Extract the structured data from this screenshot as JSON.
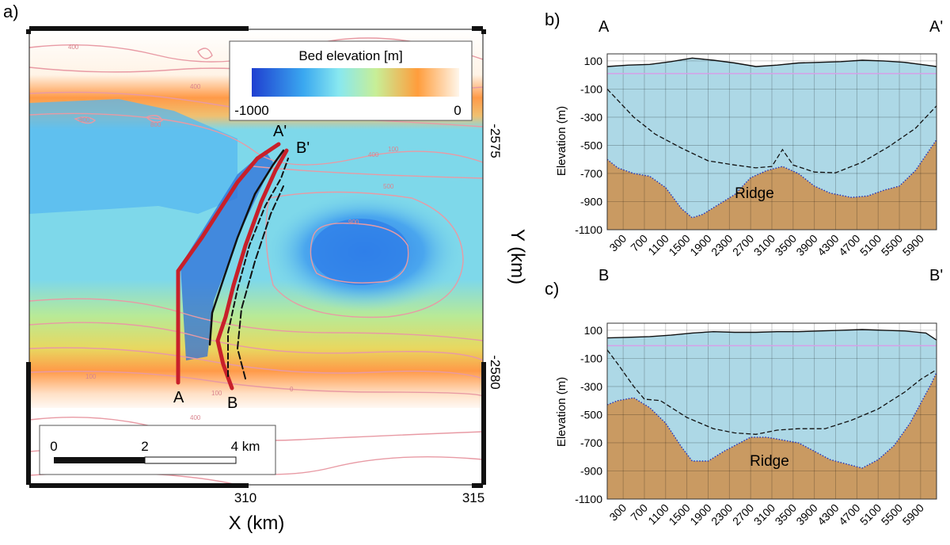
{
  "colors": {
    "water": "#add8e6",
    "bed": "#c99a62",
    "contour": "#e89aa4",
    "ice_line": "#111111",
    "profile_line": "#c8202a",
    "lake_line": "#d6a0e8"
  },
  "panel_a": {
    "label": "a)",
    "xlabel": "X (km)",
    "ylabel": "Y (km)",
    "x_ticks": [
      "310",
      "315"
    ],
    "y_ticks": [
      "-2575",
      "-2580"
    ],
    "colorbar": {
      "title": "Bed elevation [m]",
      "min_label": "-1000",
      "max_label": "0"
    },
    "scalebar": {
      "labels": [
        "0",
        "2",
        "4 km"
      ]
    },
    "profile_labels": [
      "A",
      "A'",
      "B",
      "B'"
    ],
    "contour_labels": [
      "400",
      "800",
      "400",
      "800",
      "400",
      "500",
      "900",
      "100",
      "100",
      "0",
      "100",
      "400"
    ]
  },
  "chart_data": [
    {
      "type": "area",
      "panel": "b)",
      "start_label": "A",
      "end_label": "A'",
      "xlabel": "",
      "ylabel": "Elevation (m)",
      "xlim": [
        0,
        6200
      ],
      "ylim": [
        -1100,
        150
      ],
      "x_ticks": [
        300,
        700,
        1100,
        1500,
        1900,
        2300,
        2700,
        3100,
        3500,
        3900,
        4300,
        4700,
        5100,
        5500,
        5900
      ],
      "y_ticks": [
        100,
        -100,
        -300,
        -500,
        -700,
        -900,
        -1100
      ],
      "annotation": "Ridge",
      "series": [
        {
          "name": "surface",
          "x": [
            0,
            400,
            800,
            1200,
            1600,
            2000,
            2400,
            2800,
            3200,
            3600,
            4000,
            4400,
            4800,
            5200,
            5600,
            6000,
            6200
          ],
          "y": [
            60,
            70,
            75,
            95,
            120,
            105,
            85,
            60,
            70,
            85,
            90,
            95,
            105,
            100,
            90,
            70,
            60
          ]
        },
        {
          "name": "lake_level",
          "x": [
            0,
            6200
          ],
          "y": [
            10,
            10
          ]
        },
        {
          "name": "ice_bottom",
          "x": [
            0,
            200,
            500,
            900,
            1400,
            1900,
            2400,
            2800,
            3100,
            3300,
            3500,
            3900,
            4300,
            4800,
            5300,
            5800,
            6200
          ],
          "y": [
            -100,
            -180,
            -300,
            -420,
            -520,
            -610,
            -640,
            -660,
            -650,
            -530,
            -640,
            -690,
            -695,
            -620,
            -510,
            -380,
            -220
          ]
        },
        {
          "name": "bed",
          "x": [
            0,
            200,
            500,
            800,
            1100,
            1400,
            1600,
            1800,
            2100,
            2400,
            2700,
            3000,
            3300,
            3600,
            3900,
            4200,
            4600,
            4900,
            5200,
            5500,
            5800,
            6000,
            6200
          ],
          "y": [
            -600,
            -660,
            -700,
            -720,
            -800,
            -950,
            -1015,
            -990,
            -920,
            -850,
            -730,
            -680,
            -650,
            -700,
            -790,
            -840,
            -870,
            -860,
            -820,
            -790,
            -680,
            -570,
            -460
          ]
        }
      ]
    },
    {
      "type": "area",
      "panel": "c)",
      "start_label": "B",
      "end_label": "B'",
      "xlabel": "",
      "ylabel": "Elevation (m)",
      "xlim": [
        0,
        6200
      ],
      "ylim": [
        -1100,
        150
      ],
      "x_ticks": [
        300,
        700,
        1100,
        1500,
        1900,
        2300,
        2700,
        3100,
        3500,
        3900,
        4300,
        4700,
        5100,
        5500,
        5900
      ],
      "y_ticks": [
        100,
        -100,
        -300,
        -500,
        -700,
        -900,
        -1100
      ],
      "annotation": "Ridge",
      "series": [
        {
          "name": "surface",
          "x": [
            0,
            400,
            800,
            1200,
            1600,
            2000,
            2400,
            2800,
            3200,
            3600,
            4000,
            4400,
            4800,
            5200,
            5600,
            6000,
            6200
          ],
          "y": [
            45,
            50,
            55,
            65,
            80,
            90,
            85,
            85,
            90,
            90,
            95,
            100,
            105,
            100,
            95,
            80,
            30
          ]
        },
        {
          "name": "lake_level",
          "x": [
            0,
            6200
          ],
          "y": [
            -10,
            -10
          ]
        },
        {
          "name": "ice_bottom",
          "x": [
            0,
            200,
            500,
            700,
            1000,
            1500,
            2000,
            2400,
            2800,
            3200,
            3600,
            4100,
            4600,
            5100,
            5600,
            5900,
            6200
          ],
          "y": [
            -40,
            -140,
            -300,
            -390,
            -400,
            -520,
            -600,
            -630,
            -640,
            -610,
            -600,
            -600,
            -540,
            -460,
            -340,
            -250,
            -180
          ]
        },
        {
          "name": "bed",
          "x": [
            0,
            200,
            500,
            800,
            1100,
            1400,
            1600,
            1900,
            2200,
            2500,
            2700,
            3000,
            3300,
            3600,
            3900,
            4200,
            4500,
            4800,
            5100,
            5400,
            5700,
            5900,
            6100,
            6200
          ],
          "y": [
            -430,
            -400,
            -380,
            -450,
            -560,
            -730,
            -830,
            -830,
            -760,
            -700,
            -660,
            -660,
            -680,
            -700,
            -760,
            -820,
            -850,
            -880,
            -820,
            -720,
            -560,
            -420,
            -280,
            -200
          ]
        }
      ]
    }
  ]
}
